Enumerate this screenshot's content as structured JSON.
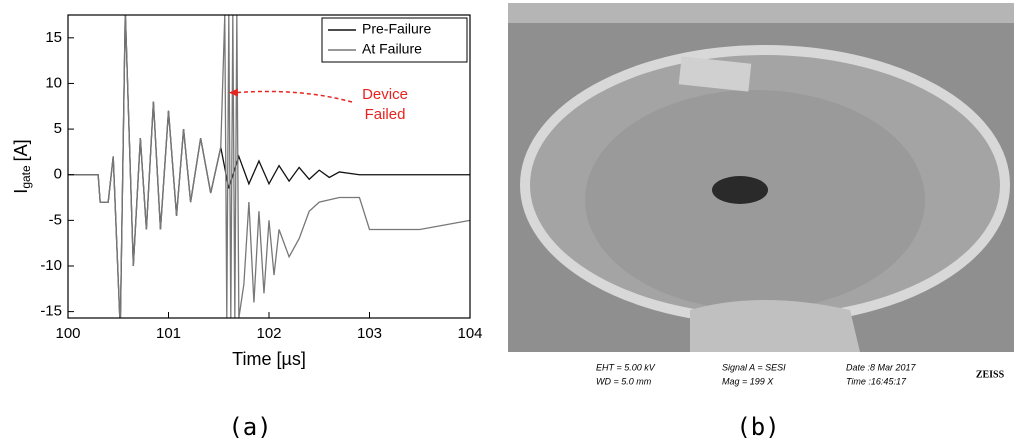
{
  "chart_data": {
    "type": "line",
    "ylabel": "I",
    "ylabel_sub": "gate",
    "ylabel_unit": "[A]",
    "xlabel": "Time [µs]",
    "xlim": [
      100,
      104
    ],
    "ylim": [
      -15.7,
      17.5
    ],
    "xticks": [
      100,
      101,
      102,
      103,
      104
    ],
    "yticks": [
      -15,
      -10,
      -5,
      0,
      5,
      10,
      15
    ],
    "legend": "top-right",
    "annotation_lines": [
      "Device",
      "Failed"
    ],
    "annotation_color": "#e8231f",
    "annotation_arrow_to": [
      101.6,
      9
    ],
    "series": [
      {
        "name": "Pre-Failure",
        "color": "#111111",
        "x": [
          100,
          100.3,
          100.32,
          100.4,
          100.45,
          100.52,
          100.57,
          100.65,
          100.72,
          100.78,
          100.85,
          100.92,
          101.0,
          101.08,
          101.15,
          101.22,
          101.32,
          101.42,
          101.52,
          101.6,
          101.7,
          101.8,
          101.9,
          102.0,
          102.1,
          102.2,
          102.3,
          102.4,
          102.5,
          102.6,
          102.7,
          102.9,
          104
        ],
        "values": [
          0,
          0,
          -3,
          -3,
          2,
          -17,
          18,
          -10,
          4,
          -6,
          8,
          -6,
          7,
          -4.5,
          5,
          -3,
          4,
          -2,
          3,
          -1.5,
          2,
          -1,
          1.5,
          -1,
          1,
          -0.7,
          0.8,
          -0.5,
          0.5,
          -0.3,
          0.3,
          0,
          0
        ]
      },
      {
        "name": "At Failure",
        "color": "#777777",
        "x": [
          100,
          100.3,
          100.32,
          100.4,
          100.45,
          100.52,
          100.57,
          100.65,
          100.72,
          100.78,
          100.85,
          100.92,
          101.0,
          101.08,
          101.15,
          101.22,
          101.32,
          101.42,
          101.52,
          101.56,
          101.58,
          101.6,
          101.62,
          101.64,
          101.66,
          101.68,
          101.7,
          101.75,
          101.8,
          101.85,
          101.9,
          101.95,
          102.0,
          102.05,
          102.1,
          102.2,
          102.3,
          102.4,
          102.5,
          102.7,
          102.9,
          103.0,
          103.2,
          103.5,
          104
        ],
        "values": [
          0,
          0,
          -3,
          -3,
          2,
          -17,
          18,
          -10,
          4,
          -6,
          8,
          -6,
          7,
          -4.5,
          5,
          -3,
          4,
          -2,
          3,
          17.5,
          -15.7,
          17.5,
          -15.7,
          17.5,
          -15.7,
          17.5,
          -15.7,
          -12,
          -3,
          -14,
          -4,
          -13,
          -5,
          -11,
          -6,
          -9,
          -7,
          -4,
          -3,
          -2.5,
          -2.5,
          -6,
          -6,
          -6,
          -5
        ]
      }
    ]
  },
  "image_b": {
    "eht": "EHT =  5.00 kV",
    "wd": "WD =  5.0 mm",
    "signal": "Signal A = SESI",
    "mag": "Mag =   199 X",
    "date": "Date :8 Mar 2017",
    "time": "Time :16:45:17",
    "brand": "ZEISS"
  },
  "captions": [
    "(a)",
    "(b)"
  ]
}
